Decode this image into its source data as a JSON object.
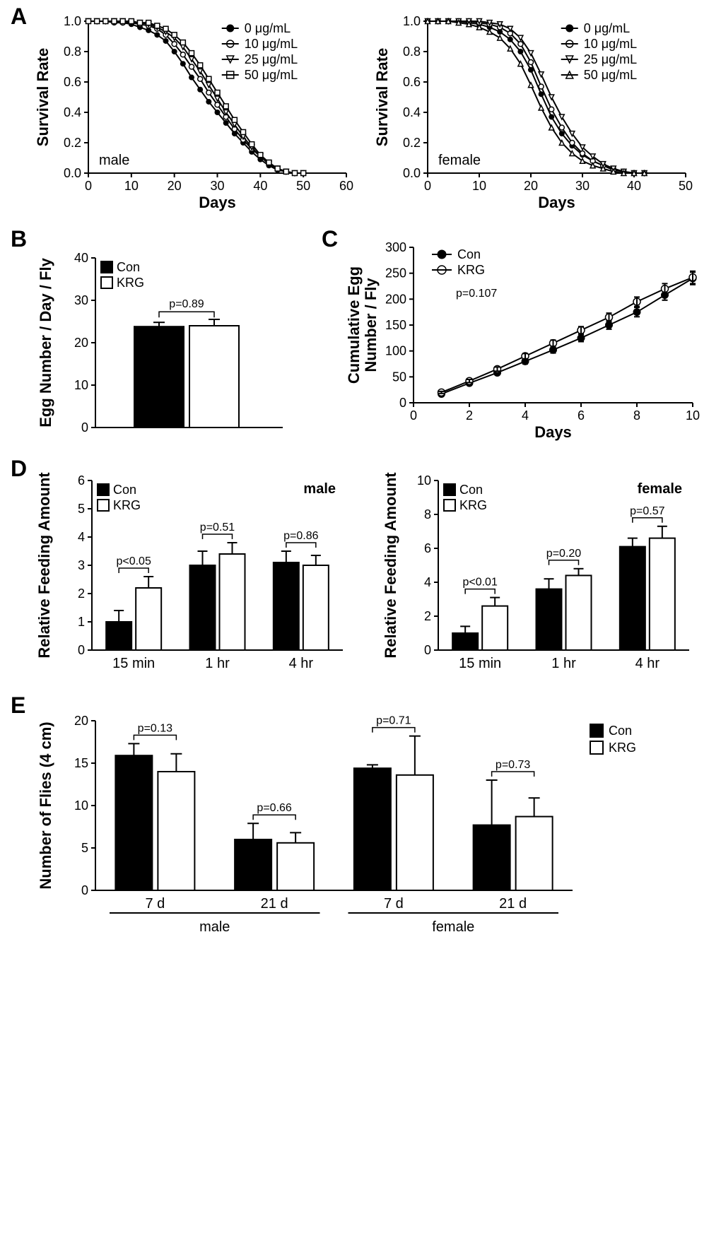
{
  "colors": {
    "fg": "#000000",
    "bg": "#ffffff"
  },
  "panelA": {
    "letter": "A",
    "charts": [
      {
        "label": "male",
        "xlabel": "Days",
        "ylabel": "Survival Rate",
        "xlim": [
          0,
          60
        ],
        "xticks": [
          0,
          10,
          20,
          30,
          40,
          50,
          60
        ],
        "ylim": [
          0,
          1
        ],
        "yticks": [
          0.0,
          0.2,
          0.4,
          0.6,
          0.8,
          1.0
        ],
        "legend": [
          "0 μg/mL",
          "10 μg/mL",
          "25 μg/mL",
          "50 μg/mL"
        ],
        "markers": [
          "circle-filled",
          "circle-open",
          "tri-down-open",
          "square-open"
        ],
        "series": [
          [
            [
              0,
              1.0
            ],
            [
              2,
              1.0
            ],
            [
              4,
              1.0
            ],
            [
              6,
              0.99
            ],
            [
              8,
              0.99
            ],
            [
              10,
              0.98
            ],
            [
              12,
              0.96
            ],
            [
              14,
              0.94
            ],
            [
              16,
              0.91
            ],
            [
              18,
              0.87
            ],
            [
              20,
              0.8
            ],
            [
              22,
              0.72
            ],
            [
              24,
              0.63
            ],
            [
              26,
              0.55
            ],
            [
              28,
              0.47
            ],
            [
              30,
              0.4
            ],
            [
              32,
              0.33
            ],
            [
              34,
              0.26
            ],
            [
              36,
              0.2
            ],
            [
              38,
              0.14
            ],
            [
              40,
              0.09
            ],
            [
              42,
              0.05
            ],
            [
              44,
              0.02
            ],
            [
              46,
              0.01
            ],
            [
              48,
              0.0
            ],
            [
              50,
              0.0
            ]
          ],
          [
            [
              0,
              1.0
            ],
            [
              2,
              1.0
            ],
            [
              4,
              1.0
            ],
            [
              6,
              1.0
            ],
            [
              8,
              0.99
            ],
            [
              10,
              0.99
            ],
            [
              12,
              0.98
            ],
            [
              14,
              0.97
            ],
            [
              16,
              0.95
            ],
            [
              18,
              0.91
            ],
            [
              20,
              0.85
            ],
            [
              22,
              0.78
            ],
            [
              24,
              0.7
            ],
            [
              26,
              0.62
            ],
            [
              28,
              0.53
            ],
            [
              30,
              0.45
            ],
            [
              32,
              0.37
            ],
            [
              34,
              0.29
            ],
            [
              36,
              0.22
            ],
            [
              38,
              0.16
            ],
            [
              40,
              0.11
            ],
            [
              42,
              0.06
            ],
            [
              44,
              0.03
            ],
            [
              46,
              0.01
            ],
            [
              48,
              0.0
            ],
            [
              50,
              0.0
            ]
          ],
          [
            [
              0,
              1.0
            ],
            [
              2,
              1.0
            ],
            [
              4,
              1.0
            ],
            [
              6,
              1.0
            ],
            [
              8,
              1.0
            ],
            [
              10,
              0.99
            ],
            [
              12,
              0.99
            ],
            [
              14,
              0.98
            ],
            [
              16,
              0.96
            ],
            [
              18,
              0.93
            ],
            [
              20,
              0.89
            ],
            [
              22,
              0.83
            ],
            [
              24,
              0.75
            ],
            [
              26,
              0.67
            ],
            [
              28,
              0.58
            ],
            [
              30,
              0.49
            ],
            [
              32,
              0.4
            ],
            [
              34,
              0.32
            ],
            [
              36,
              0.24
            ],
            [
              38,
              0.17
            ],
            [
              40,
              0.11
            ],
            [
              42,
              0.06
            ],
            [
              44,
              0.03
            ],
            [
              46,
              0.01
            ],
            [
              48,
              0.0
            ],
            [
              50,
              0.0
            ]
          ],
          [
            [
              0,
              1.0
            ],
            [
              2,
              1.0
            ],
            [
              4,
              1.0
            ],
            [
              6,
              1.0
            ],
            [
              8,
              1.0
            ],
            [
              10,
              1.0
            ],
            [
              12,
              0.99
            ],
            [
              14,
              0.99
            ],
            [
              16,
              0.97
            ],
            [
              18,
              0.95
            ],
            [
              20,
              0.91
            ],
            [
              22,
              0.86
            ],
            [
              24,
              0.79
            ],
            [
              26,
              0.71
            ],
            [
              28,
              0.62
            ],
            [
              30,
              0.53
            ],
            [
              32,
              0.44
            ],
            [
              34,
              0.35
            ],
            [
              36,
              0.27
            ],
            [
              38,
              0.19
            ],
            [
              40,
              0.12
            ],
            [
              42,
              0.07
            ],
            [
              44,
              0.03
            ],
            [
              46,
              0.01
            ],
            [
              48,
              0.0
            ],
            [
              50,
              0.0
            ]
          ]
        ]
      },
      {
        "label": "female",
        "xlabel": "Days",
        "ylabel": "Survival Rate",
        "xlim": [
          0,
          50
        ],
        "xticks": [
          0,
          10,
          20,
          30,
          40,
          50
        ],
        "ylim": [
          0,
          1
        ],
        "yticks": [
          0.0,
          0.2,
          0.4,
          0.6,
          0.8,
          1.0
        ],
        "legend": [
          "0 μg/mL",
          "10 μg/mL",
          "25 μg/mL",
          "50 μg/mL"
        ],
        "markers": [
          "circle-filled",
          "circle-open",
          "tri-down-open",
          "tri-up-open"
        ],
        "series": [
          [
            [
              0,
              1.0
            ],
            [
              2,
              1.0
            ],
            [
              4,
              1.0
            ],
            [
              6,
              1.0
            ],
            [
              8,
              0.99
            ],
            [
              10,
              0.98
            ],
            [
              12,
              0.96
            ],
            [
              14,
              0.93
            ],
            [
              16,
              0.88
            ],
            [
              18,
              0.8
            ],
            [
              20,
              0.68
            ],
            [
              22,
              0.52
            ],
            [
              24,
              0.37
            ],
            [
              26,
              0.26
            ],
            [
              28,
              0.18
            ],
            [
              30,
              0.12
            ],
            [
              32,
              0.08
            ],
            [
              34,
              0.05
            ],
            [
              36,
              0.03
            ],
            [
              38,
              0.01
            ],
            [
              40,
              0.0
            ],
            [
              42,
              0.0
            ]
          ],
          [
            [
              0,
              1.0
            ],
            [
              2,
              1.0
            ],
            [
              4,
              1.0
            ],
            [
              6,
              1.0
            ],
            [
              8,
              1.0
            ],
            [
              10,
              0.99
            ],
            [
              12,
              0.98
            ],
            [
              14,
              0.96
            ],
            [
              16,
              0.92
            ],
            [
              18,
              0.85
            ],
            [
              20,
              0.73
            ],
            [
              22,
              0.57
            ],
            [
              24,
              0.42
            ],
            [
              26,
              0.3
            ],
            [
              28,
              0.2
            ],
            [
              30,
              0.13
            ],
            [
              32,
              0.08
            ],
            [
              34,
              0.05
            ],
            [
              36,
              0.02
            ],
            [
              38,
              0.01
            ],
            [
              40,
              0.0
            ],
            [
              42,
              0.0
            ]
          ],
          [
            [
              0,
              1.0
            ],
            [
              2,
              1.0
            ],
            [
              4,
              1.0
            ],
            [
              6,
              1.0
            ],
            [
              8,
              1.0
            ],
            [
              10,
              1.0
            ],
            [
              12,
              0.99
            ],
            [
              14,
              0.98
            ],
            [
              16,
              0.95
            ],
            [
              18,
              0.89
            ],
            [
              20,
              0.79
            ],
            [
              22,
              0.65
            ],
            [
              24,
              0.5
            ],
            [
              26,
              0.37
            ],
            [
              28,
              0.26
            ],
            [
              30,
              0.17
            ],
            [
              32,
              0.11
            ],
            [
              34,
              0.06
            ],
            [
              36,
              0.03
            ],
            [
              38,
              0.01
            ],
            [
              40,
              0.0
            ],
            [
              42,
              0.0
            ]
          ],
          [
            [
              0,
              1.0
            ],
            [
              2,
              1.0
            ],
            [
              4,
              1.0
            ],
            [
              6,
              0.99
            ],
            [
              8,
              0.98
            ],
            [
              10,
              0.96
            ],
            [
              12,
              0.93
            ],
            [
              14,
              0.89
            ],
            [
              16,
              0.82
            ],
            [
              18,
              0.72
            ],
            [
              20,
              0.58
            ],
            [
              22,
              0.43
            ],
            [
              24,
              0.3
            ],
            [
              26,
              0.2
            ],
            [
              28,
              0.13
            ],
            [
              30,
              0.08
            ],
            [
              32,
              0.05
            ],
            [
              34,
              0.03
            ],
            [
              36,
              0.01
            ],
            [
              38,
              0.0
            ],
            [
              40,
              0.0
            ],
            [
              42,
              0.0
            ]
          ]
        ]
      }
    ]
  },
  "panelB": {
    "letter": "B",
    "ylabel": "Egg Number / Day / Fly",
    "ylim": [
      0,
      40
    ],
    "yticks": [
      0,
      10,
      20,
      30,
      40
    ],
    "legend": [
      "Con",
      "KRG"
    ],
    "bars": [
      {
        "label": "Con",
        "value": 23.8,
        "err": 1.0,
        "fill": "filled"
      },
      {
        "label": "KRG",
        "value": 24.0,
        "err": 1.5,
        "fill": "open"
      }
    ],
    "pvalue": "p=0.89"
  },
  "panelC": {
    "letter": "C",
    "xlabel": "Days",
    "ylabel": "Cumulative Egg\nNumber / Fly",
    "xlim": [
      0,
      10
    ],
    "xticks": [
      0,
      2,
      4,
      6,
      8,
      10
    ],
    "ylim": [
      0,
      300
    ],
    "yticks": [
      0,
      50,
      100,
      150,
      200,
      250,
      300
    ],
    "legend": [
      "Con",
      "KRG"
    ],
    "markers": [
      "circle-filled",
      "circle-open"
    ],
    "pvalue": "p=0.107",
    "series": [
      [
        [
          1,
          17
        ],
        [
          2,
          38
        ],
        [
          3,
          58
        ],
        [
          4,
          80
        ],
        [
          5,
          102
        ],
        [
          6,
          125
        ],
        [
          7,
          150
        ],
        [
          8,
          175
        ],
        [
          9,
          208
        ],
        [
          10,
          240
        ]
      ],
      [
        [
          1,
          20
        ],
        [
          2,
          42
        ],
        [
          3,
          65
        ],
        [
          4,
          90
        ],
        [
          5,
          115
        ],
        [
          6,
          140
        ],
        [
          7,
          165
        ],
        [
          8,
          195
        ],
        [
          9,
          220
        ],
        [
          10,
          242
        ]
      ]
    ],
    "err": [
      [
        2,
        3,
        4,
        5,
        6,
        7,
        8,
        9,
        10,
        12
      ],
      [
        2,
        3,
        4,
        5,
        6,
        7,
        8,
        9,
        10,
        12
      ]
    ]
  },
  "panelD": {
    "letter": "D",
    "charts": [
      {
        "label": "male",
        "ylabel": "Relative Feeding Amount",
        "ylim": [
          0,
          6
        ],
        "yticks": [
          0,
          1,
          2,
          3,
          4,
          5,
          6
        ],
        "legend": [
          "Con",
          "KRG"
        ],
        "categories": [
          "15 min",
          "1 hr",
          "4 hr"
        ],
        "groups": [
          {
            "con": {
              "v": 1.0,
              "e": 0.4
            },
            "krg": {
              "v": 2.2,
              "e": 0.4
            },
            "p": "p<0.05"
          },
          {
            "con": {
              "v": 3.0,
              "e": 0.5
            },
            "krg": {
              "v": 3.4,
              "e": 0.4
            },
            "p": "p=0.51"
          },
          {
            "con": {
              "v": 3.1,
              "e": 0.4
            },
            "krg": {
              "v": 3.0,
              "e": 0.35
            },
            "p": "p=0.86"
          }
        ]
      },
      {
        "label": "female",
        "ylabel": "Relative Feeding Amount",
        "ylim": [
          0,
          10
        ],
        "yticks": [
          0,
          2,
          4,
          6,
          8,
          10
        ],
        "legend": [
          "Con",
          "KRG"
        ],
        "categories": [
          "15 min",
          "1 hr",
          "4 hr"
        ],
        "groups": [
          {
            "con": {
              "v": 1.0,
              "e": 0.4
            },
            "krg": {
              "v": 2.6,
              "e": 0.5
            },
            "p": "p<0.01"
          },
          {
            "con": {
              "v": 3.6,
              "e": 0.6
            },
            "krg": {
              "v": 4.4,
              "e": 0.4
            },
            "p": "p=0.20"
          },
          {
            "con": {
              "v": 6.1,
              "e": 0.5
            },
            "krg": {
              "v": 6.6,
              "e": 0.7
            },
            "p": "p=0.57"
          }
        ]
      }
    ]
  },
  "panelE": {
    "letter": "E",
    "ylabel": "Number of Flies (4 cm)",
    "ylim": [
      0,
      20
    ],
    "yticks": [
      0,
      5,
      10,
      15,
      20
    ],
    "legend": [
      "Con",
      "KRG"
    ],
    "groupLabels": [
      "male",
      "female"
    ],
    "categories": [
      "7 d",
      "21 d",
      "7 d",
      "21 d"
    ],
    "groups": [
      {
        "con": {
          "v": 15.9,
          "e": 1.4
        },
        "krg": {
          "v": 14.0,
          "e": 2.1
        },
        "p": "p=0.13"
      },
      {
        "con": {
          "v": 6.0,
          "e": 1.9
        },
        "krg": {
          "v": 5.6,
          "e": 1.2
        },
        "p": "p=0.66"
      },
      {
        "con": {
          "v": 14.4,
          "e": 0.4
        },
        "krg": {
          "v": 13.6,
          "e": 4.6
        },
        "p": "p=0.71"
      },
      {
        "con": {
          "v": 7.7,
          "e": 5.3
        },
        "krg": {
          "v": 8.7,
          "e": 2.2
        },
        "p": "p=0.73"
      }
    ]
  }
}
